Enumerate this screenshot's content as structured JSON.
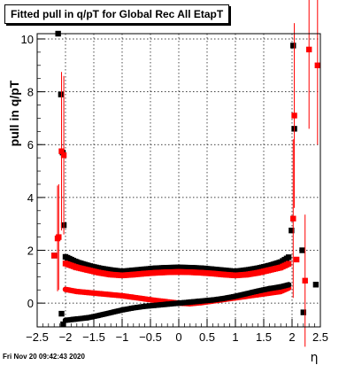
{
  "chart_data": {
    "type": "scatter",
    "title": "Fitted pull in q/pT for Global Rec All EtapT",
    "xlabel": "η",
    "ylabel": "pull in q/pT",
    "xlim": [
      -2.5,
      2.5
    ],
    "ylim": [
      -0.9,
      10.2
    ],
    "x_ticks": [
      -2.5,
      -2,
      -1.5,
      -1,
      -0.5,
      0,
      0.5,
      1,
      1.5,
      2,
      2.5
    ],
    "x_tick_labels": [
      "−2.5",
      "−2",
      "−1.5",
      "−1",
      "−0.5",
      "0",
      "0.5",
      "1",
      "1.5",
      "2",
      "2.5"
    ],
    "y_ticks": [
      0,
      2,
      4,
      6,
      8,
      10
    ],
    "y_tick_labels": [
      "0",
      "2",
      "4",
      "6",
      "8",
      "10"
    ],
    "grid": true,
    "legend": "none",
    "footer": "Fri Nov 20 09:42:43 2020",
    "colors": {
      "black": "#000000",
      "red": "#ff0000"
    },
    "series": [
      {
        "color": "#000000",
        "marker": "square",
        "description": "upper black band (sigma)",
        "x": [
          -2.0,
          -1.8,
          -1.6,
          -1.4,
          -1.2,
          -1.0,
          -0.8,
          -0.6,
          -0.4,
          -0.2,
          0.0,
          0.2,
          0.4,
          0.6,
          0.8,
          1.0,
          1.2,
          1.4,
          1.6,
          1.8,
          1.95
        ],
        "y": [
          1.75,
          1.55,
          1.42,
          1.32,
          1.25,
          1.2,
          1.24,
          1.28,
          1.32,
          1.34,
          1.35,
          1.34,
          1.32,
          1.28,
          1.24,
          1.2,
          1.25,
          1.32,
          1.42,
          1.55,
          1.75
        ]
      },
      {
        "color": "#ff0000",
        "marker": "square",
        "description": "upper red band (sigma)",
        "x": [
          -2.0,
          -1.8,
          -1.6,
          -1.4,
          -1.2,
          -1.0,
          -0.8,
          -0.6,
          -0.4,
          -0.2,
          0.0,
          0.2,
          0.4,
          0.6,
          0.8,
          1.0,
          1.2,
          1.4,
          1.6,
          1.8,
          1.95
        ],
        "y": [
          1.5,
          1.35,
          1.25,
          1.15,
          1.08,
          1.05,
          1.08,
          1.12,
          1.15,
          1.17,
          1.18,
          1.17,
          1.15,
          1.12,
          1.08,
          1.05,
          1.08,
          1.15,
          1.25,
          1.35,
          1.5
        ]
      },
      {
        "color": "#ff0000",
        "marker": "circle",
        "description": "lower red band (mean)",
        "x": [
          -2.0,
          -1.8,
          -1.6,
          -1.4,
          -1.2,
          -1.0,
          -0.8,
          -0.6,
          -0.4,
          -0.2,
          0.0,
          0.2,
          0.4,
          0.6,
          0.8,
          1.0,
          1.2,
          1.4,
          1.6,
          1.8,
          1.95
        ],
        "y": [
          0.52,
          0.44,
          0.4,
          0.36,
          0.32,
          0.28,
          0.22,
          0.16,
          0.1,
          0.05,
          0.0,
          -0.02,
          0.02,
          0.08,
          0.14,
          0.2,
          0.26,
          0.32,
          0.38,
          0.44,
          0.58
        ]
      },
      {
        "color": "#000000",
        "marker": "circle",
        "description": "lower black band (mean)",
        "x": [
          -2.0,
          -1.8,
          -1.6,
          -1.4,
          -1.2,
          -1.0,
          -0.8,
          -0.6,
          -0.4,
          -0.2,
          0.0,
          0.2,
          0.4,
          0.6,
          0.8,
          1.0,
          1.2,
          1.4,
          1.6,
          1.8,
          1.95
        ],
        "y": [
          -0.65,
          -0.6,
          -0.55,
          -0.46,
          -0.36,
          -0.26,
          -0.18,
          -0.12,
          -0.08,
          -0.04,
          0.0,
          0.04,
          0.08,
          0.12,
          0.18,
          0.26,
          0.36,
          0.46,
          0.55,
          0.62,
          0.7
        ]
      },
      {
        "color": "#000000",
        "marker": "square",
        "description": "black edge points",
        "x": [
          -2.13,
          -2.08,
          -2.05,
          -2.03,
          -2.2,
          -2.07,
          -2.04,
          2.02,
          2.04,
          1.99,
          2.18,
          2.42,
          2.2
        ],
        "y": [
          10.2,
          7.9,
          5.7,
          2.95,
          1.8,
          -0.4,
          -0.8,
          9.75,
          6.6,
          2.75,
          2.0,
          0.7,
          -0.35
        ],
        "yerr": [
          0.0,
          0.0,
          0.0,
          0.0,
          0.0,
          0.0,
          0.0,
          0.0,
          0.0,
          0.0,
          0.0,
          0.0,
          0.0
        ]
      },
      {
        "color": "#ff0000",
        "marker": "square",
        "description": "red edge points",
        "x": [
          -2.07,
          -2.03,
          -2.2,
          -2.14,
          -2.12,
          2.04,
          2.02,
          2.08,
          2.3,
          2.45,
          2.23
        ],
        "y": [
          5.75,
          5.6,
          1.8,
          2.45,
          2.5,
          7.1,
          3.2,
          1.65,
          9.6,
          9.0,
          0.85
        ],
        "yerr": [
          3.0,
          3.0,
          0.0,
          2.0,
          2.0,
          3.5,
          3.0,
          0.0,
          3.0,
          3.0,
          2.5
        ]
      }
    ]
  }
}
